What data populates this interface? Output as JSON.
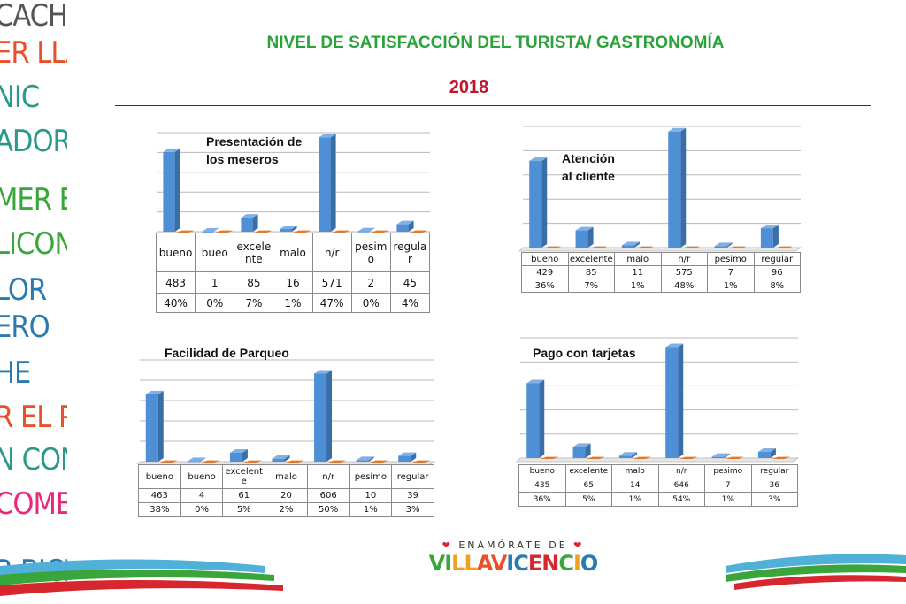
{
  "header": {
    "title": "NIVEL DE SATISFACCIÓN DEL TURISTA/ GASTRONOMÍA",
    "year": "2018"
  },
  "side_text": [
    {
      "text": "CACHA",
      "color": "#555555"
    },
    {
      "text": "ER LLAN",
      "color": "#e8502a"
    },
    {
      "text": "NIC",
      "color": "#2a9a8a"
    },
    {
      "text": "ADORE",
      "color": "#2a9a8a"
    },
    {
      "text": "MER EL F",
      "color": "#3aa53a"
    },
    {
      "text": "LICONI",
      "color": "#3aa53a"
    },
    {
      "text": "LOR",
      "color": "#2a7ab0"
    },
    {
      "text": "ERO",
      "color": "#2a7ab0"
    },
    {
      "text": "HE",
      "color": "#2a7ab0"
    },
    {
      "text": "R EL PARQ",
      "color": "#e8502a"
    },
    {
      "text": "N CON",
      "color": "#2a9a8a"
    },
    {
      "text": "COMER",
      "color": "#e8287a"
    },
    {
      "text": "R BICI",
      "color": "#2a7ab0"
    }
  ],
  "logo": {
    "top": "ENAMÓRATE DE",
    "heart_left": "❤",
    "heart_right": "❤",
    "main": "VILLAVICENCIO",
    "main_colors": [
      "#3aa53a",
      "#3aa53a",
      "#f0a020",
      "#f0a020",
      "#e8502a",
      "#e8502a",
      "#2a7ab0",
      "#2a7ab0",
      "#d8262e",
      "#d8262e",
      "#3aa53a",
      "#f0a020",
      "#2a7ab0"
    ]
  },
  "colors": {
    "bar": "#4f8fd6",
    "bar_side": "#3a6ea8",
    "bar_top": "#7fb0e6",
    "baseline_mark": "#e07a2a",
    "grid": "#b8b8b8",
    "title_green": "#2aa33a",
    "year_red": "#c0152a"
  },
  "chart_data": [
    {
      "type": "bar",
      "title": "Presentación de los meseros",
      "title_lines": [
        "Presentación de",
        "los meseros"
      ],
      "categories": [
        "bueno",
        "bueo",
        "excelente",
        "malo",
        "n/r",
        "pesimo",
        "regular"
      ],
      "table_header_lines": [
        [
          "bueno"
        ],
        [
          "bueo"
        ],
        [
          "excele",
          "nte"
        ],
        [
          "malo"
        ],
        [
          "n/r"
        ],
        [
          "pesim",
          "o"
        ],
        [
          "regula",
          "r"
        ]
      ],
      "values": [
        483,
        1,
        85,
        16,
        571,
        2,
        45
      ],
      "percents": [
        "40%",
        "0%",
        "7%",
        "1%",
        "47%",
        "0%",
        "4%"
      ],
      "ylim": [
        0,
        600
      ],
      "grid": true
    },
    {
      "type": "bar",
      "title": "Atención al cliente",
      "title_lines": [
        "Atención",
        "al cliente"
      ],
      "categories": [
        "bueno",
        "excelente",
        "malo",
        "n/r",
        "pesimo",
        "regular"
      ],
      "table_header_lines": [
        [
          "bueno"
        ],
        [
          "excelente"
        ],
        [
          "malo"
        ],
        [
          "n/r"
        ],
        [
          "pesimo"
        ],
        [
          "regular"
        ]
      ],
      "values": [
        429,
        85,
        11,
        575,
        7,
        96
      ],
      "percents": [
        "36%",
        "7%",
        "1%",
        "48%",
        "1%",
        "8%"
      ],
      "ylim": [
        0,
        600
      ],
      "grid": true
    },
    {
      "type": "bar",
      "title": "Facilidad de Parqueo",
      "title_lines": [
        "Facilidad de Parqueo"
      ],
      "categories": [
        "bueno",
        "bueno",
        "excelente",
        "malo",
        "n/r",
        "pesimo",
        "regular"
      ],
      "table_header_lines": [
        [
          "bueno"
        ],
        [
          "bueno"
        ],
        [
          "excelent",
          "e"
        ],
        [
          "malo"
        ],
        [
          "n/r"
        ],
        [
          "pesimo"
        ],
        [
          "regular"
        ]
      ],
      "values": [
        463,
        4,
        61,
        20,
        606,
        10,
        39
      ],
      "percents": [
        "38%",
        "0%",
        "5%",
        "2%",
        "50%",
        "1%",
        "3%"
      ],
      "ylim": [
        0,
        700
      ],
      "grid": true
    },
    {
      "type": "bar",
      "title": "Pago con tarjetas",
      "title_lines": [
        "Pago con tarjetas"
      ],
      "categories": [
        "bueno",
        "excelente",
        "malo",
        "n/r",
        "pesimo",
        "regular"
      ],
      "table_header_lines": [
        [
          "bueno"
        ],
        [
          "excelente"
        ],
        [
          "malo"
        ],
        [
          "n/r"
        ],
        [
          "pesimo"
        ],
        [
          "regular"
        ]
      ],
      "values": [
        435,
        65,
        14,
        646,
        7,
        36
      ],
      "percents": [
        "36%",
        "5%",
        "1%",
        "54%",
        "1%",
        "3%"
      ],
      "ylim": [
        0,
        700
      ],
      "grid": true
    }
  ]
}
